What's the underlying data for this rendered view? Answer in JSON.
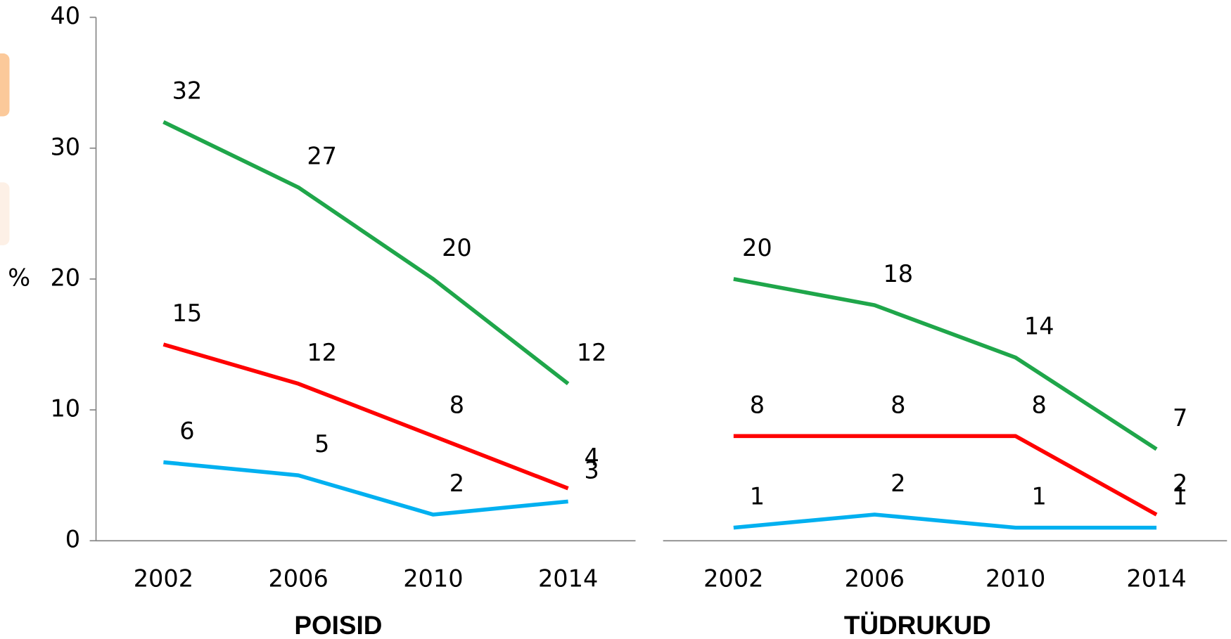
{
  "chart_data": [
    {
      "type": "line",
      "title": "POISID",
      "ylabel": "%",
      "categories": [
        "2002",
        "2006",
        "2010",
        "2014"
      ],
      "series": [
        {
          "color": "#1fa64a",
          "values": [
            32,
            27,
            20,
            12
          ]
        },
        {
          "color": "#ff0000",
          "values": [
            15,
            12,
            8,
            4
          ]
        },
        {
          "color": "#00b0f0",
          "values": [
            6,
            5,
            2,
            3
          ]
        }
      ],
      "ylim": [
        0,
        40
      ],
      "yticks": [
        0,
        10,
        20,
        30,
        40
      ]
    },
    {
      "type": "line",
      "title": "TÜDRUKUD",
      "categories": [
        "2002",
        "2006",
        "2010",
        "2014"
      ],
      "series": [
        {
          "color": "#1fa64a",
          "values": [
            20,
            18,
            14,
            7
          ]
        },
        {
          "color": "#ff0000",
          "values": [
            8,
            8,
            8,
            2
          ]
        },
        {
          "color": "#00b0f0",
          "values": [
            1,
            2,
            1,
            1
          ]
        }
      ],
      "ylim": [
        0,
        40
      ]
    }
  ]
}
